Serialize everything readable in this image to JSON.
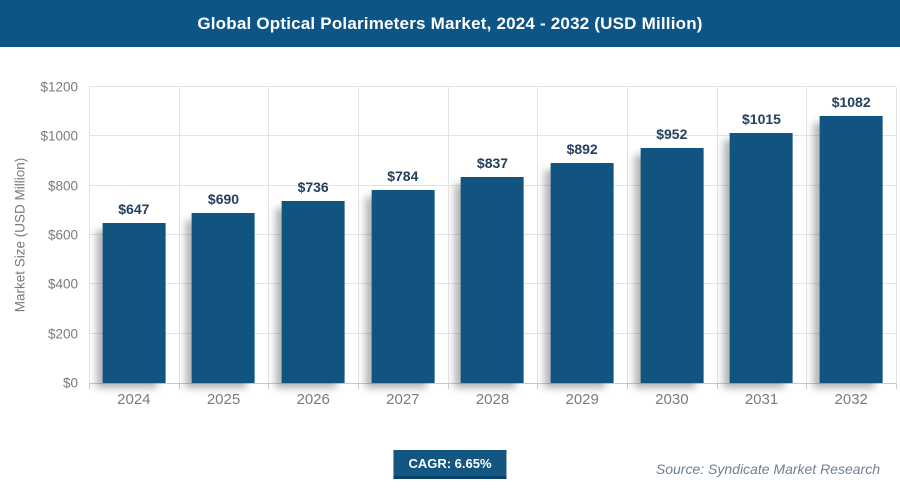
{
  "header": {
    "title": "Global Optical Polarimeters Market, 2024 - 2032 (USD Million)"
  },
  "chart_data": {
    "type": "bar",
    "title": "Global Optical Polarimeters Market, 2024 - 2032 (USD Million)",
    "categories": [
      "2024",
      "2025",
      "2026",
      "2027",
      "2028",
      "2029",
      "2030",
      "2031",
      "2032"
    ],
    "values": [
      647,
      690,
      736,
      784,
      837,
      892,
      952,
      1015,
      1082
    ],
    "bar_labels": [
      "$647",
      "$690",
      "$736",
      "$784",
      "$837",
      "$892",
      "$952",
      "$1015",
      "$1082"
    ],
    "xlabel": "",
    "ylabel": "Market Size (USD Million)",
    "ylim": [
      0,
      1200
    ],
    "y_ticks": [
      "$0",
      "$200",
      "$400",
      "$600",
      "$800",
      "$1000",
      "$1200"
    ],
    "grid": true,
    "legend": "none"
  },
  "footer": {
    "cagr_label": "CAGR: 6.65%",
    "source": "Source: Syndicate Market Research"
  },
  "colors": {
    "banner_bg": "#0d5586",
    "banner_text": "#ffffff",
    "bar_fill": "#125480",
    "bar_label": "#22405f",
    "axis_text": "#7b7b7b",
    "gridline": "#e3e3e3",
    "baseline": "#c9c9c9",
    "badge_bg": "#125681",
    "badge_border": "#0a4166",
    "badge_text": "#ffffff",
    "source_text": "#6e8090"
  }
}
